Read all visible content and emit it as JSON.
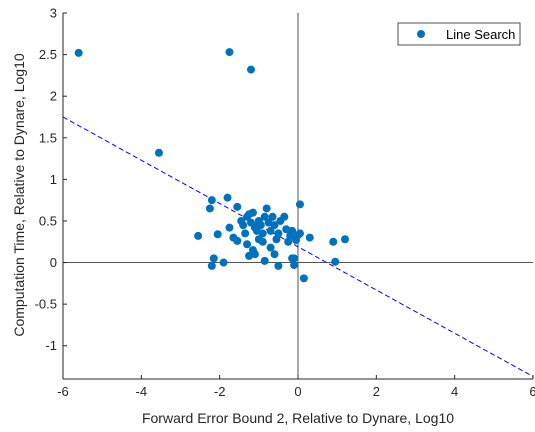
{
  "chart_data": {
    "type": "scatter",
    "title": "",
    "xlabel": "Forward Error Bound 2, Relative to Dynare, Log10",
    "ylabel": "Computation Time, Relative to Dynare, Log10",
    "xlim": [
      -6,
      6
    ],
    "ylim": [
      -1.4,
      3
    ],
    "xticks": [
      -6,
      -4,
      -2,
      0,
      2,
      4,
      6
    ],
    "yticks": [
      -1,
      -0.5,
      0,
      0.5,
      1,
      1.5,
      2,
      2.5,
      3
    ],
    "xtick_labels": [
      "-6",
      "-4",
      "-2",
      "0",
      "2",
      "4",
      "6"
    ],
    "ytick_labels": [
      "-1",
      "-0.5",
      "0",
      "0.5",
      "1",
      "1.5",
      "2",
      "2.5",
      "3"
    ],
    "grid": false,
    "legend_position": "top-right",
    "colors": {
      "points": "#0072BD",
      "fit_line": "#0000FF",
      "axes": "#262626",
      "zero_lines": "#555555"
    },
    "series": [
      {
        "name": "Line Search",
        "x": [
          -5.6,
          -1.75,
          -1.2,
          -3.55,
          -1.8,
          -2.2,
          -2.25,
          -1.55,
          -2.55,
          -2.05,
          -1.75,
          -1.65,
          -1.55,
          -1.45,
          -1.4,
          -1.35,
          -1.3,
          -1.25,
          -1.2,
          -1.15,
          -1.1,
          -1.05,
          -1.0,
          -0.95,
          -0.9,
          -0.85,
          -0.8,
          -0.75,
          -0.7,
          -0.65,
          -0.6,
          -0.55,
          -0.5,
          -0.45,
          -0.35,
          -0.3,
          -0.25,
          -0.2,
          -0.15,
          -0.1,
          0.0,
          0.05,
          -0.7,
          -0.9,
          -1.0,
          -1.15,
          -1.3,
          -1.25,
          -1.1,
          -0.85,
          -0.6,
          -0.5,
          -0.15,
          -0.1,
          0.05,
          -2.15,
          -2.2,
          -1.9,
          -0.05,
          0.15,
          0.3,
          0.95,
          1.2,
          0.9
        ],
        "y": [
          2.52,
          2.53,
          2.32,
          1.32,
          0.78,
          0.75,
          0.65,
          0.67,
          0.32,
          0.34,
          0.42,
          0.3,
          0.26,
          0.5,
          0.45,
          0.35,
          0.55,
          0.58,
          0.48,
          0.6,
          0.42,
          0.38,
          0.5,
          0.45,
          0.35,
          0.55,
          0.65,
          0.48,
          0.38,
          0.55,
          0.45,
          0.28,
          0.35,
          0.5,
          0.55,
          0.4,
          0.25,
          0.32,
          0.38,
          0.05,
          0.33,
          0.7,
          0.18,
          0.25,
          0.28,
          0.15,
          0.22,
          0.08,
          0.1,
          0.02,
          0.1,
          -0.04,
          0.05,
          -0.03,
          0.35,
          0.05,
          -0.04,
          0.0,
          0.27,
          -0.19,
          0.3,
          0.01,
          0.28,
          0.25
        ]
      }
    ],
    "fit_line": {
      "x": [
        -6,
        6
      ],
      "y": [
        1.75,
        -1.37
      ]
    }
  }
}
